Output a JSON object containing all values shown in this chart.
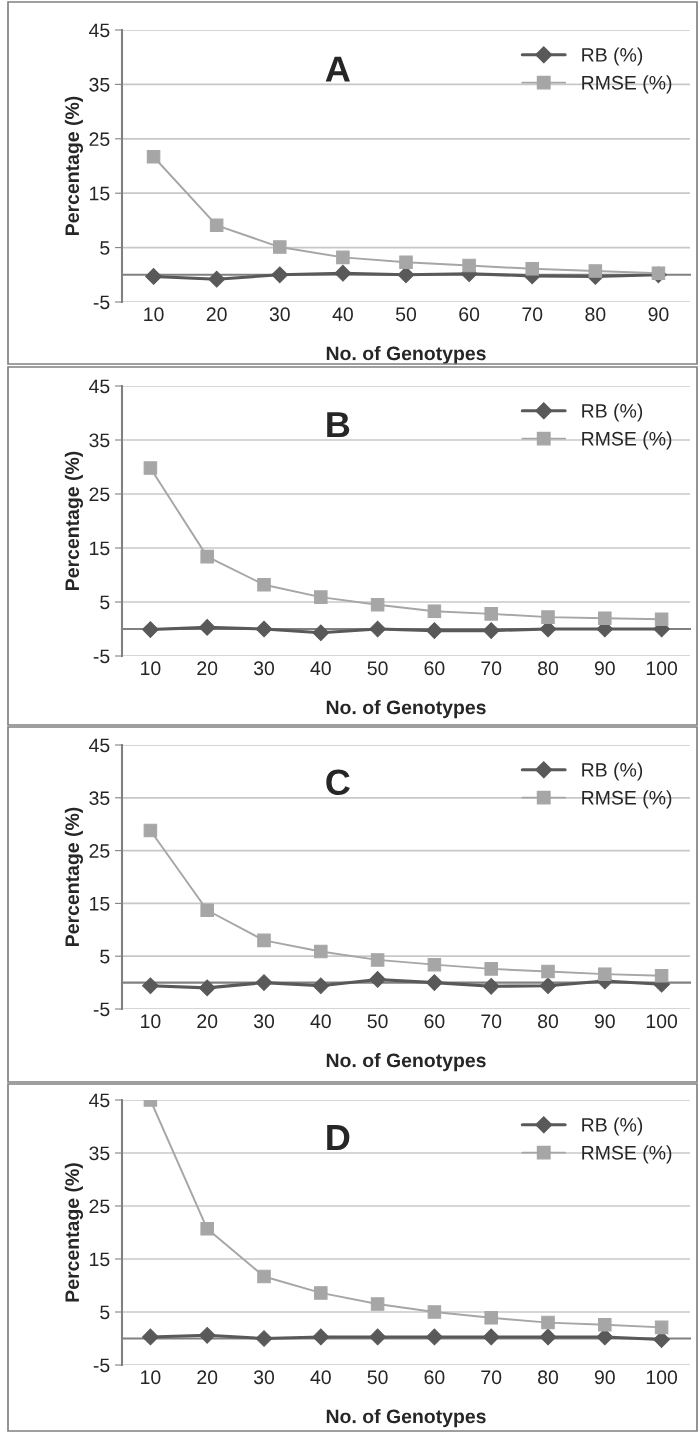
{
  "chart_data": [
    {
      "type": "line",
      "title": "A",
      "xlabel": "No. of Genotypes",
      "ylabel": "Percentage (%)",
      "categories": [
        "10",
        "20",
        "30",
        "40",
        "50",
        "60",
        "70",
        "80",
        "90"
      ],
      "ylim": [
        -5,
        45
      ],
      "yticks": [
        -5,
        5,
        15,
        25,
        35,
        45
      ],
      "grid": "y",
      "legend": "top right",
      "series": [
        {
          "name": "RB (%)",
          "color": "#595959",
          "marker": "diamond",
          "values": [
            -0.3,
            -0.8,
            0,
            0.3,
            0,
            0.2,
            -0.2,
            -0.3,
            0
          ]
        },
        {
          "name": "RMSE (%)",
          "color": "#a6a6a6",
          "marker": "square",
          "values": [
            21.7,
            9.1,
            5.1,
            3.2,
            2.3,
            1.7,
            1.1,
            0.7,
            0.3
          ]
        }
      ]
    },
    {
      "type": "line",
      "title": "B",
      "xlabel": "No. of Genotypes",
      "ylabel": "Percentage (%)",
      "categories": [
        "10",
        "20",
        "30",
        "40",
        "50",
        "60",
        "70",
        "80",
        "90",
        "100"
      ],
      "ylim": [
        -5,
        45
      ],
      "yticks": [
        -5,
        5,
        15,
        25,
        35,
        45
      ],
      "grid": "y",
      "legend": "top right",
      "series": [
        {
          "name": "RB (%)",
          "color": "#595959",
          "marker": "diamond",
          "values": [
            -0.1,
            0.3,
            0,
            -0.7,
            0,
            -0.3,
            -0.3,
            0,
            0,
            0
          ]
        },
        {
          "name": "RMSE (%)",
          "color": "#a6a6a6",
          "marker": "square",
          "values": [
            29.8,
            13.4,
            8.2,
            5.9,
            4.5,
            3.3,
            2.8,
            2.2,
            2.0,
            1.8
          ]
        }
      ]
    },
    {
      "type": "line",
      "title": "C",
      "xlabel": "No. of Genotypes",
      "ylabel": "Percentage (%)",
      "categories": [
        "10",
        "20",
        "30",
        "40",
        "50",
        "60",
        "70",
        "80",
        "90",
        "100"
      ],
      "ylim": [
        -5,
        45
      ],
      "yticks": [
        -5,
        5,
        15,
        25,
        35,
        45
      ],
      "grid": "y",
      "legend": "top right",
      "series": [
        {
          "name": "RB (%)",
          "color": "#595959",
          "marker": "diamond",
          "values": [
            -0.6,
            -1.0,
            0,
            -0.6,
            0.6,
            0,
            -0.7,
            -0.6,
            0.3,
            -0.3
          ]
        },
        {
          "name": "RMSE (%)",
          "color": "#a6a6a6",
          "marker": "square",
          "values": [
            28.8,
            13.7,
            8.0,
            5.9,
            4.3,
            3.4,
            2.6,
            2.1,
            1.6,
            1.3
          ]
        }
      ]
    },
    {
      "type": "line",
      "title": "D",
      "xlabel": "No. of Genotypes",
      "ylabel": "Percentage (%)",
      "categories": [
        "10",
        "20",
        "30",
        "40",
        "50",
        "60",
        "70",
        "80",
        "90",
        "100"
      ],
      "ylim": [
        -5,
        45
      ],
      "yticks": [
        -5,
        5,
        15,
        25,
        35,
        45
      ],
      "grid": "y",
      "legend": "top right",
      "series": [
        {
          "name": "RB (%)",
          "color": "#595959",
          "marker": "diamond",
          "values": [
            0.3,
            0.6,
            0,
            0.3,
            0.3,
            0.3,
            0.3,
            0.3,
            0.3,
            -0.2
          ]
        },
        {
          "name": "RMSE (%)",
          "color": "#a6a6a6",
          "marker": "square",
          "values": [
            45,
            20.7,
            11.7,
            8.6,
            6.5,
            5.0,
            3.9,
            3.0,
            2.6,
            2.1
          ]
        }
      ]
    }
  ]
}
